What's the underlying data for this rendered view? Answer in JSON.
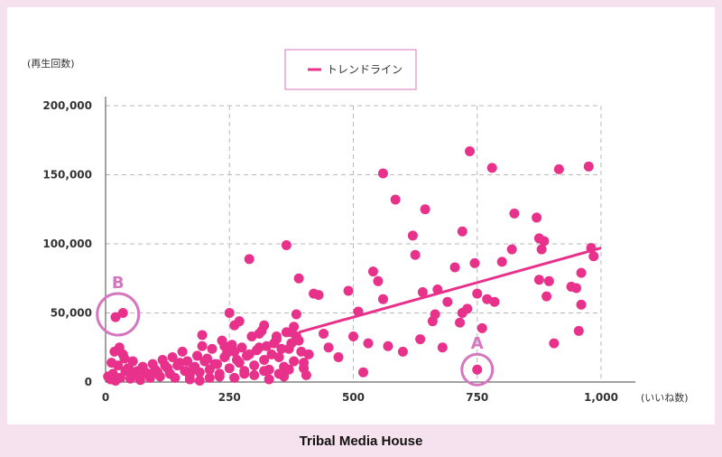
{
  "colors": {
    "accent": "#e8318a",
    "annotation": "#d776c0",
    "grid": "#b8b8b8"
  },
  "footer": {
    "brand": "Tribal Media House"
  },
  "chart_data": {
    "type": "scatter",
    "ylabel": "(再生回数)",
    "xlabel": "(いいね数)",
    "xlim": [
      0,
      1000
    ],
    "ylim": [
      0,
      200000
    ],
    "x_ticks": [
      0,
      250,
      500,
      750,
      1000
    ],
    "y_ticks": [
      0,
      50000,
      100000,
      150000,
      200000
    ],
    "x_tick_labels": [
      "0",
      "250",
      "500",
      "750",
      "1,000"
    ],
    "y_tick_labels": [
      "0",
      "50,000",
      "100,000",
      "150,000",
      "200,000"
    ],
    "grid": true,
    "legend": {
      "position": "top-center",
      "entries": [
        "トレンドライン"
      ]
    },
    "trendline": {
      "name": "トレンドライン",
      "x": [
        390,
        1000
      ],
      "y": [
        36000,
        97000
      ]
    },
    "annotations": [
      {
        "label": "A",
        "x": 750,
        "y": 9000
      },
      {
        "label": "B",
        "x": 25,
        "y": 49000
      }
    ],
    "points": [
      [
        10,
        2000
      ],
      [
        15,
        6000
      ],
      [
        20,
        1000
      ],
      [
        5,
        4000
      ],
      [
        30,
        3000
      ],
      [
        40,
        8000
      ],
      [
        50,
        2500
      ],
      [
        60,
        5000
      ],
      [
        70,
        1500
      ],
      [
        80,
        7000
      ],
      [
        90,
        3000
      ],
      [
        100,
        9000
      ],
      [
        110,
        4000
      ],
      [
        120,
        12000
      ],
      [
        130,
        6000
      ],
      [
        140,
        3000
      ],
      [
        150,
        14000
      ],
      [
        160,
        8000
      ],
      [
        170,
        5000
      ],
      [
        180,
        11000
      ],
      [
        190,
        7000
      ],
      [
        200,
        15000
      ],
      [
        210,
        9000
      ],
      [
        220,
        13000
      ],
      [
        230,
        6000
      ],
      [
        240,
        18000
      ],
      [
        250,
        10000
      ],
      [
        260,
        22000
      ],
      [
        270,
        14000
      ],
      [
        280,
        8000
      ],
      [
        290,
        20000
      ],
      [
        300,
        12000
      ],
      [
        310,
        25000
      ],
      [
        320,
        16000
      ],
      [
        330,
        9000
      ],
      [
        340,
        28000
      ],
      [
        350,
        18000
      ],
      [
        360,
        11000
      ],
      [
        370,
        24000
      ],
      [
        380,
        15000
      ],
      [
        390,
        30000
      ],
      [
        400,
        10000
      ],
      [
        405,
        5000
      ],
      [
        410,
        20000
      ],
      [
        25,
        12000
      ],
      [
        35,
        20000
      ],
      [
        45,
        10000
      ],
      [
        55,
        15000
      ],
      [
        65,
        8000
      ],
      [
        75,
        11000
      ],
      [
        85,
        6000
      ],
      [
        95,
        13000
      ],
      [
        105,
        7000
      ],
      [
        115,
        16000
      ],
      [
        125,
        10000
      ],
      [
        135,
        18000
      ],
      [
        145,
        12000
      ],
      [
        155,
        22000
      ],
      [
        165,
        15000
      ],
      [
        175,
        9000
      ],
      [
        185,
        19000
      ],
      [
        195,
        26000
      ],
      [
        205,
        17000
      ],
      [
        215,
        24000
      ],
      [
        225,
        13000
      ],
      [
        235,
        30000
      ],
      [
        245,
        21000
      ],
      [
        255,
        27000
      ],
      [
        265,
        16000
      ],
      [
        275,
        25000
      ],
      [
        285,
        19000
      ],
      [
        295,
        33000
      ],
      [
        305,
        23000
      ],
      [
        315,
        37000
      ],
      [
        325,
        26000
      ],
      [
        335,
        20000
      ],
      [
        345,
        31000
      ],
      [
        355,
        24000
      ],
      [
        365,
        36000
      ],
      [
        375,
        28000
      ],
      [
        385,
        33000
      ],
      [
        395,
        22000
      ],
      [
        12,
        14000
      ],
      [
        18,
        22000
      ],
      [
        28,
        25000
      ],
      [
        38,
        17000
      ],
      [
        48,
        9000
      ],
      [
        230,
        4000
      ],
      [
        260,
        3000
      ],
      [
        300,
        5000
      ],
      [
        330,
        2000
      ],
      [
        360,
        4000
      ],
      [
        20,
        47000
      ],
      [
        35,
        50000
      ],
      [
        250,
        50000
      ],
      [
        260,
        41000
      ],
      [
        270,
        44000
      ],
      [
        290,
        89000
      ],
      [
        310,
        35000
      ],
      [
        320,
        41000
      ],
      [
        345,
        33000
      ],
      [
        365,
        99000
      ],
      [
        375,
        36000
      ],
      [
        380,
        40000
      ],
      [
        385,
        49000
      ],
      [
        390,
        75000
      ],
      [
        420,
        64000
      ],
      [
        430,
        63000
      ],
      [
        440,
        35000
      ],
      [
        450,
        25000
      ],
      [
        470,
        18000
      ],
      [
        490,
        66000
      ],
      [
        500,
        33000
      ],
      [
        510,
        51000
      ],
      [
        520,
        7000
      ],
      [
        530,
        28000
      ],
      [
        540,
        80000
      ],
      [
        550,
        73000
      ],
      [
        560,
        60000
      ],
      [
        560,
        151000
      ],
      [
        570,
        26000
      ],
      [
        585,
        132000
      ],
      [
        600,
        22000
      ],
      [
        620,
        106000
      ],
      [
        625,
        92000
      ],
      [
        635,
        31000
      ],
      [
        640,
        65000
      ],
      [
        645,
        125000
      ],
      [
        660,
        44000
      ],
      [
        665,
        49000
      ],
      [
        670,
        67000
      ],
      [
        680,
        25000
      ],
      [
        690,
        58000
      ],
      [
        705,
        83000
      ],
      [
        715,
        43000
      ],
      [
        720,
        50000
      ],
      [
        720,
        109000
      ],
      [
        730,
        53000
      ],
      [
        735,
        167000
      ],
      [
        745,
        86000
      ],
      [
        750,
        64000
      ],
      [
        760,
        39000
      ],
      [
        770,
        60000
      ],
      [
        780,
        155000
      ],
      [
        785,
        58000
      ],
      [
        800,
        87000
      ],
      [
        820,
        96000
      ],
      [
        825,
        122000
      ],
      [
        870,
        119000
      ],
      [
        875,
        104000
      ],
      [
        875,
        74000
      ],
      [
        880,
        96000
      ],
      [
        885,
        102000
      ],
      [
        890,
        62000
      ],
      [
        895,
        73000
      ],
      [
        905,
        28000
      ],
      [
        915,
        154000
      ],
      [
        940,
        69000
      ],
      [
        950,
        68000
      ],
      [
        955,
        37000
      ],
      [
        960,
        79000
      ],
      [
        960,
        56000
      ],
      [
        975,
        156000
      ],
      [
        980,
        97000
      ],
      [
        985,
        91000
      ],
      [
        750,
        9000
      ],
      [
        170,
        2000
      ],
      [
        190,
        1000
      ],
      [
        210,
        3000
      ],
      [
        280,
        6000
      ],
      [
        320,
        8000
      ],
      [
        350,
        6000
      ],
      [
        370,
        9000
      ],
      [
        400,
        14000
      ],
      [
        195,
        34000
      ],
      [
        240,
        26000
      ]
    ]
  }
}
